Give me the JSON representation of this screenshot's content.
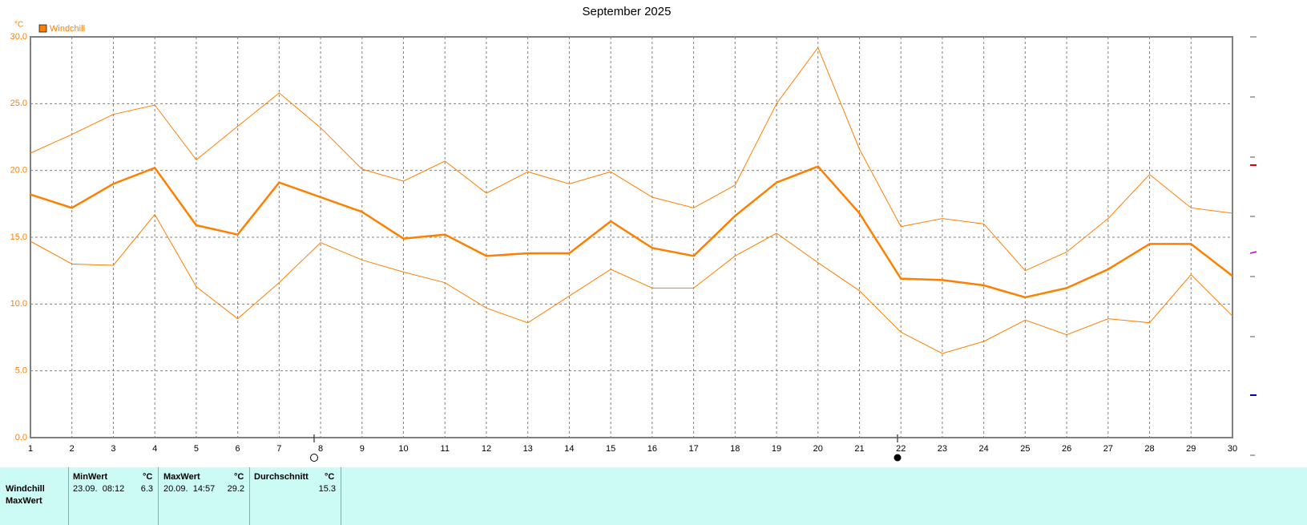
{
  "chart_data": {
    "type": "line",
    "title": "September 2025",
    "y_unit": "°C",
    "x": [
      1,
      2,
      3,
      4,
      5,
      6,
      7,
      8,
      9,
      10,
      11,
      12,
      13,
      14,
      15,
      16,
      17,
      18,
      19,
      20,
      21,
      22,
      23,
      24,
      25,
      26,
      27,
      28,
      29,
      30
    ],
    "xlim": [
      1,
      30
    ],
    "series": [
      {
        "name": "Windchill",
        "color": "#ff7f00",
        "values": [
          18.2,
          17.2,
          19.0,
          20.2,
          15.9,
          15.2,
          19.1,
          18.0,
          16.9,
          14.9,
          15.2,
          13.6,
          13.8,
          13.8,
          16.2,
          14.2,
          13.6,
          16.6,
          19.1,
          20.3,
          16.8,
          11.9,
          11.8,
          11.4,
          10.5,
          11.2,
          12.6,
          14.5,
          14.5,
          12.1
        ],
        "high": [
          21.3,
          22.7,
          24.2,
          24.9,
          20.8,
          23.3,
          25.8,
          23.2,
          20.1,
          19.2,
          20.7,
          18.3,
          19.9,
          19.0,
          19.9,
          18.0,
          17.2,
          18.9,
          25.0,
          29.2,
          21.6,
          15.8,
          16.4,
          16.0,
          12.5,
          13.9,
          16.4,
          19.7,
          17.2,
          16.8
        ],
        "low": [
          14.7,
          13.0,
          12.9,
          16.7,
          11.3,
          8.9,
          11.6,
          14.6,
          13.3,
          12.4,
          11.6,
          9.7,
          8.6,
          10.6,
          12.6,
          11.2,
          11.2,
          13.6,
          15.3,
          13.1,
          11.0,
          7.9,
          6.3,
          7.2,
          8.8,
          7.7,
          8.9,
          8.6,
          12.2,
          9.1
        ]
      }
    ],
    "ylim": [
      0,
      30
    ],
    "yticks": [
      {
        "value": 0,
        "label": "0.0"
      },
      {
        "value": 5,
        "label": "5.0"
      },
      {
        "value": 10,
        "label": "10.0"
      },
      {
        "value": 15,
        "label": "15.0"
      },
      {
        "value": 20,
        "label": "20.0"
      },
      {
        "value": 25,
        "label": "25.0"
      },
      {
        "value": 30,
        "label": "30.0"
      }
    ],
    "grid": true
  },
  "table": {
    "headers": [
      "MinWert",
      "°C",
      "MaxWert",
      "°C",
      "Durchschnitt",
      "°C"
    ],
    "rows": [
      {
        "label": "Windchill",
        "min_time": "23.09.  08:12",
        "min": 6.3,
        "max_time": "20.09.  14:57",
        "max": 29.2,
        "avg": 15.3
      },
      {
        "label": "MaxWert"
      }
    ]
  }
}
